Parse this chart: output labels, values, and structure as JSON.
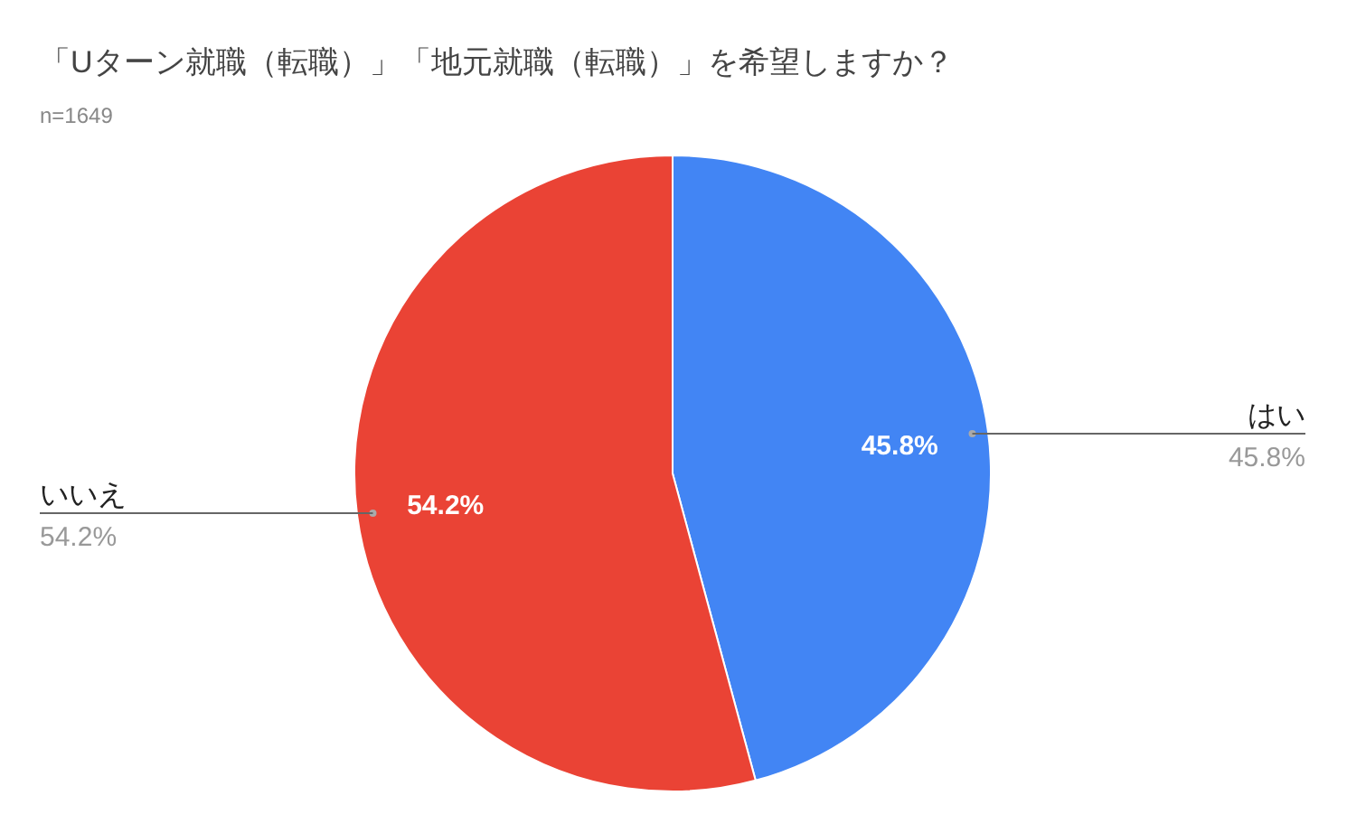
{
  "chart_data": {
    "type": "pie",
    "title": "「Uターン就職（転職）」「地元就職（転職）」を希望しますか？",
    "subtitle": "n=1649",
    "categories": [
      "はい",
      "いいえ"
    ],
    "values": [
      45.8,
      54.2
    ],
    "colors": [
      "#4285f4",
      "#ea4335"
    ],
    "value_labels": [
      "45.8%",
      "54.2%"
    ]
  }
}
